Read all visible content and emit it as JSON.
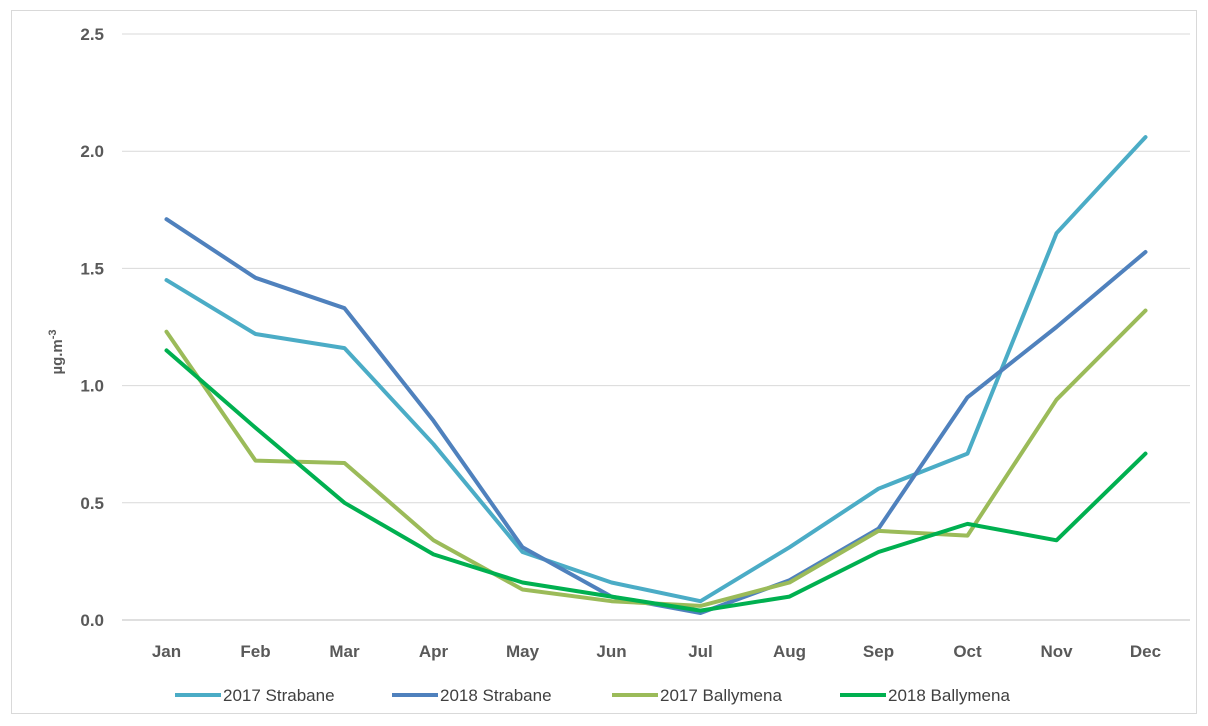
{
  "chart_data": {
    "type": "line",
    "title": "",
    "xlabel": "",
    "ylabel": "µg.m",
    "ylabel_superscript": "-3",
    "categories": [
      "Jan",
      "Feb",
      "Mar",
      "Apr",
      "May",
      "Jun",
      "Jul",
      "Aug",
      "Sep",
      "Oct",
      "Nov",
      "Dec"
    ],
    "ylim": [
      0,
      2.5
    ],
    "yticks": [
      "0.0",
      "0.5",
      "1.0",
      "1.5",
      "2.0",
      "2.5"
    ],
    "grid": true,
    "legend_position": "bottom",
    "series": [
      {
        "name": "2017 Strabane",
        "color": "#4bacc6",
        "values": [
          1.45,
          1.22,
          1.16,
          0.75,
          0.29,
          0.16,
          0.08,
          0.31,
          0.56,
          0.71,
          1.65,
          2.06
        ]
      },
      {
        "name": "2018 Strabane",
        "color": "#4f81bd",
        "values": [
          1.71,
          1.46,
          1.33,
          0.85,
          0.31,
          0.1,
          0.03,
          0.17,
          0.39,
          0.95,
          1.25,
          1.57
        ]
      },
      {
        "name": "2017 Ballymena",
        "color": "#9bbb59",
        "values": [
          1.23,
          0.68,
          0.67,
          0.34,
          0.13,
          0.08,
          0.06,
          0.16,
          0.38,
          0.36,
          0.94,
          1.32
        ]
      },
      {
        "name": "2018 Ballymena",
        "color": "#00b050",
        "values": [
          1.15,
          0.82,
          0.5,
          0.28,
          0.16,
          0.1,
          0.04,
          0.1,
          0.29,
          0.41,
          0.34,
          0.71
        ]
      }
    ]
  }
}
